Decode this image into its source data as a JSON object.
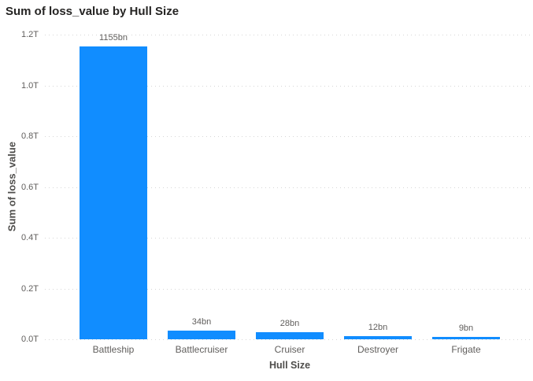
{
  "chart_data": {
    "type": "bar",
    "title": "Sum of loss_value by Hull Size",
    "xlabel": "Hull Size",
    "ylabel": "Sum of loss_value",
    "categories": [
      "Battleship",
      "Battlecruiser",
      "Cruiser",
      "Destroyer",
      "Frigate"
    ],
    "values_bn": [
      1155,
      34,
      28,
      12,
      9
    ],
    "data_labels": [
      "1155bn",
      "34bn",
      "28bn",
      "12bn",
      "9bn"
    ],
    "y_ticks": [
      "1.2T",
      "1.0T",
      "0.8T",
      "0.6T",
      "0.4T",
      "0.2T",
      "0.0T"
    ],
    "ylim_bn": [
      0,
      1200
    ],
    "grid": true,
    "legend": false,
    "bar_color": "#118DFF",
    "gridline_color": "#D6D6D6",
    "label_color": "#605E5C",
    "axis_title_color": "#4E4D4B",
    "title_color": "#252423"
  }
}
